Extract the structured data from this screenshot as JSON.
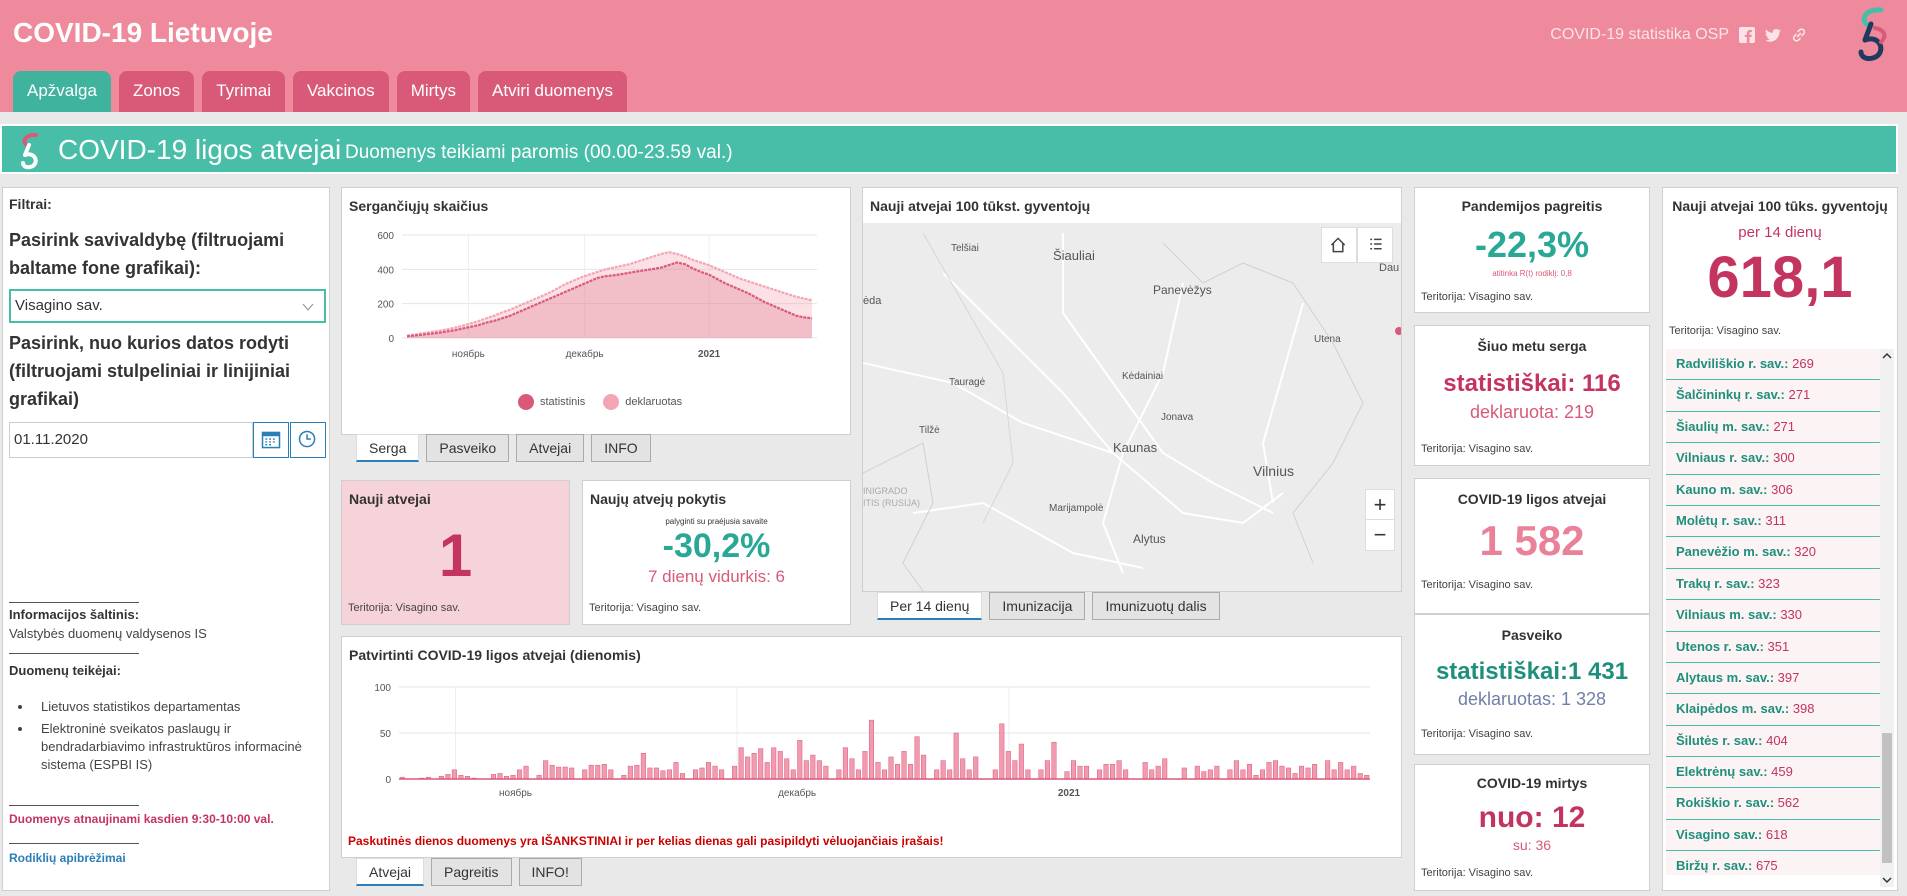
{
  "header": {
    "title": "COVID-19 Lietuvoje",
    "source_link": "COVID-19 statistika OSP",
    "tabs": [
      "Apžvalga",
      "Zonos",
      "Tyrimai",
      "Vakcinos",
      "Mirtys",
      "Atviri duomenys"
    ],
    "active_tab": "Apžvalga"
  },
  "banner": {
    "title": "COVID-19 ligos atvejai",
    "subtitle": "Duomenys teikiami paromis (00.00-23.59 val.)"
  },
  "filters": {
    "label": "Filtrai:",
    "municipality_question": "Pasirink savivaldybę (filtruojami baltame fone grafikai):",
    "municipality_value": "Visagino sav.",
    "date_question": "Pasirink, nuo kurios datos rodyti (filtruojami stulpeliniai ir linijiniai grafikai)",
    "date_value": "01.11.2020",
    "source_heading": "Informacijos šaltinis:",
    "source_text": "Valstybės duomenų valdysenos IS",
    "providers_heading": "Duomenų teikėjai:",
    "providers": [
      "Lietuvos statistikos departamentas",
      "Elektroninė sveikatos paslaugų ir bendradarbiavimo infrastruktūros informacinė sistema (ESPBI IS)"
    ],
    "update_note": "Duomenys atnaujinami kasdien 9:30-10:00 val.",
    "definitions_link": "Rodiklių apibrėžimai"
  },
  "sick_chart": {
    "title": "Sergančiųjų skaičius",
    "legend": [
      "statistinis",
      "deklaruotas"
    ],
    "tabs": [
      "Serga",
      "Pasveiko",
      "Atvejai",
      "INFO"
    ],
    "active_tab": "Serga"
  },
  "new_cases": {
    "title": "Nauji atvejai",
    "value": "1",
    "territory": "Teritorija: Visagino sav."
  },
  "change": {
    "title": "Naujų atvejų pokytis",
    "note": "palyginti su praėjusia savaite",
    "value": "-30,2%",
    "avg": "7 dienų vidurkis: 6",
    "territory": "Teritorija: Visagino sav."
  },
  "map": {
    "title": "Nauji atvejai 100 tūkst. gyventojų",
    "tabs": [
      "Per 14 dienų",
      "Imunizacija",
      "Imunizuotų dalis"
    ],
    "active_tab": "Per 14 dienų",
    "places": [
      "Telšiai",
      "Šiauliai",
      "Panevėžys",
      "Utena",
      "Tauragė",
      "Kėdainiai",
      "Jonava",
      "Telšiai",
      "Kaunas",
      "Vilnius",
      "Marijampolė",
      "Alytus",
      "Dau",
      "ėda",
      "Tilžė",
      "INIGRADO",
      "ITIS (RUSIJA)"
    ],
    "zoom_in": "+",
    "zoom_out": "−"
  },
  "daily_chart": {
    "title": "Patvirtinti COVID-19 ligos atvejai (dienomis)",
    "warning": "Paskutinės dienos duomenys yra IŠANKSTINIAI ir per kelias dienas gali pasipildyti vėluojančiais įrašais!",
    "tabs": [
      "Atvejai",
      "Pagreitis",
      "INFO!"
    ],
    "active_tab": "Atvejai"
  },
  "kpis": {
    "growth": {
      "title": "Pandemijos pagreitis",
      "value": "-22,3%",
      "note": "atitinka R(t) rodiklį: 0,8",
      "territory": "Teritorija: Visagino sav."
    },
    "sick_now": {
      "title": "Šiuo metu serga",
      "stat": "statistiškai: 116",
      "decl": "deklaruota: 219",
      "territory": "Teritorija: Visagino sav."
    },
    "cases": {
      "title": "COVID-19 ligos atvejai",
      "value": "1 582",
      "territory": "Teritorija: Visagino sav."
    },
    "recovered": {
      "title": "Pasveiko",
      "stat": "statistiškai:1 431",
      "decl": "deklaruotas: 1 328",
      "territory": "Teritorija: Visagino sav."
    },
    "deaths": {
      "title": "COVID-19 mirtys",
      "value": "nuo: 12",
      "sub": "su: 36",
      "territory": "Teritorija: Visagino sav."
    }
  },
  "per100k": {
    "title": "Nauji atvejai 100 tūks. gyventojų",
    "subtitle": "per 14 dienų",
    "value": "618,1",
    "territory": "Teritorija: Visagino sav.",
    "items": [
      {
        "name": "Radviliškio r. sav.:",
        "value": "269"
      },
      {
        "name": "Šalčininkų r. sav.:",
        "value": "271"
      },
      {
        "name": "Šiaulių m. sav.:",
        "value": "271"
      },
      {
        "name": "Vilniaus r. sav.:",
        "value": "300"
      },
      {
        "name": "Kauno m. sav.:",
        "value": "306"
      },
      {
        "name": "Molėtų r. sav.:",
        "value": "311"
      },
      {
        "name": "Panevėžio m. sav.:",
        "value": "320"
      },
      {
        "name": "Trakų r. sav.:",
        "value": "323"
      },
      {
        "name": "Vilniaus m. sav.:",
        "value": "330"
      },
      {
        "name": "Utenos r. sav.:",
        "value": "351"
      },
      {
        "name": "Alytaus m. sav.:",
        "value": "397"
      },
      {
        "name": "Klaipėdos m. sav.:",
        "value": "398"
      },
      {
        "name": "Šilutės r. sav.:",
        "value": "404"
      },
      {
        "name": "Elektrėnų sav.:",
        "value": "459"
      },
      {
        "name": "Rokiškio r. sav.:",
        "value": "562"
      },
      {
        "name": "Visagino sav.:",
        "value": "618"
      },
      {
        "name": "Biržų r. sav.:",
        "value": "675"
      }
    ]
  },
  "colors": {
    "pink": "#ee8a9c",
    "teal": "#48bea9",
    "crimson": "#c3345f",
    "blue": "#2a7fb8"
  },
  "chart_data": [
    {
      "type": "area",
      "ylim": [
        0,
        600
      ],
      "yticks": [
        "600",
        "400",
        "200",
        "0"
      ],
      "xticks": [
        "ноябрь",
        "декабрь",
        "2021"
      ],
      "series": [
        {
          "name": "statistinis",
          "values": [
            10,
            15,
            20,
            25,
            30,
            38,
            45,
            55,
            65,
            75,
            90,
            100,
            115,
            130,
            150,
            170,
            190,
            210,
            230,
            250,
            270,
            290,
            310,
            330,
            350,
            360,
            365,
            372,
            380,
            388,
            395,
            402,
            410,
            425,
            440,
            430,
            405,
            385,
            370,
            345,
            320,
            300,
            280,
            260,
            235,
            210,
            190,
            170,
            150,
            130,
            120,
            115
          ]
        },
        {
          "name": "deklaruotas",
          "values": [
            14,
            20,
            28,
            35,
            42,
            50,
            60,
            72,
            85,
            98,
            115,
            130,
            150,
            165,
            185,
            205,
            225,
            245,
            265,
            290,
            315,
            335,
            355,
            370,
            385,
            400,
            410,
            420,
            430,
            445,
            460,
            475,
            490,
            500,
            490,
            475,
            455,
            440,
            425,
            405,
            385,
            365,
            345,
            330,
            315,
            300,
            285,
            270,
            255,
            240,
            230,
            220
          ]
        }
      ]
    },
    {
      "type": "bar",
      "ylim": [
        0,
        100
      ],
      "yticks": [
        "100",
        "50",
        "0"
      ],
      "xticks": [
        "ноябрь",
        "декабрь",
        "2021"
      ],
      "values": [
        2,
        0,
        0,
        1,
        2,
        0,
        3,
        5,
        10,
        4,
        3,
        1,
        0,
        0,
        5,
        6,
        3,
        4,
        10,
        14,
        0,
        4,
        20,
        15,
        13,
        13,
        12,
        0,
        10,
        15,
        15,
        16,
        10,
        0,
        4,
        14,
        15,
        28,
        12,
        12,
        9,
        10,
        18,
        6,
        0,
        10,
        12,
        18,
        14,
        10,
        0,
        14,
        34,
        24,
        28,
        33,
        18,
        34,
        30,
        22,
        10,
        42,
        20,
        26,
        20,
        14,
        0,
        10,
        34,
        22,
        10,
        30,
        64,
        18,
        10,
        24,
        16,
        30,
        16,
        46,
        26,
        0,
        10,
        20,
        10,
        50,
        22,
        10,
        24,
        0,
        0,
        10,
        60,
        30,
        20,
        38,
        10,
        0,
        10,
        20,
        40,
        0,
        8,
        20,
        14,
        14,
        0,
        10,
        16,
        16,
        20,
        10,
        0,
        0,
        18,
        10,
        14,
        22,
        0,
        0,
        12,
        0,
        14,
        8,
        10,
        14,
        0,
        10,
        20,
        10,
        16,
        4,
        10,
        18,
        20,
        14,
        12,
        6,
        14,
        12,
        16,
        0,
        20,
        10,
        18,
        10,
        14,
        6,
        4
      ]
    }
  ]
}
